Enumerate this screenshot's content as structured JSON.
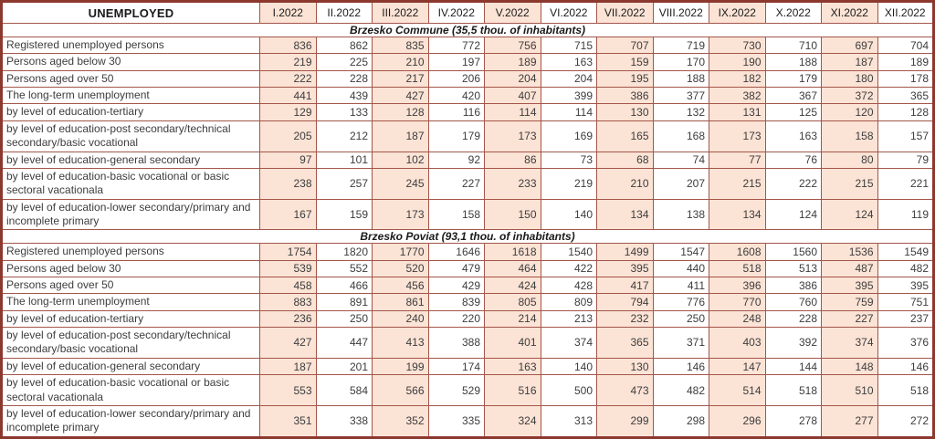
{
  "colors": {
    "outer_border": "#8c382f",
    "grid_line": "#a3564a",
    "alt_column_fill": "#fbe3d5",
    "text": "#3d3d3d"
  },
  "chart_data": {
    "type": "table",
    "title": "UNEMPLOYED",
    "columns": [
      "I.2022",
      "II.2022",
      "III.2022",
      "IV.2022",
      "V.2022",
      "VI.2022",
      "VII.2022",
      "VIII.2022",
      "IX.2022",
      "X.2022",
      "XI.2022",
      "XII.2022"
    ],
    "sections": [
      {
        "title": "Brzesko Commune (35,5 thou. of inhabitants)",
        "rows": [
          {
            "label": "Registered unemployed persons",
            "values": [
              836,
              862,
              835,
              772,
              756,
              715,
              707,
              719,
              730,
              710,
              697,
              704
            ]
          },
          {
            "label": "Persons aged below 30",
            "values": [
              219,
              225,
              210,
              197,
              189,
              163,
              159,
              170,
              190,
              188,
              187,
              189
            ]
          },
          {
            "label": "Persons aged over 50",
            "values": [
              222,
              228,
              217,
              206,
              204,
              204,
              195,
              188,
              182,
              179,
              180,
              178
            ]
          },
          {
            "label": "The long-term unemployment",
            "values": [
              441,
              439,
              427,
              420,
              407,
              399,
              386,
              377,
              382,
              367,
              372,
              365
            ]
          },
          {
            "label": "by level of education-tertiary",
            "values": [
              129,
              133,
              128,
              116,
              114,
              114,
              130,
              132,
              131,
              125,
              120,
              128
            ]
          },
          {
            "label": "by level of education-post secondary/technical secondary/basic vocational",
            "values": [
              205,
              212,
              187,
              179,
              173,
              169,
              165,
              168,
              173,
              163,
              158,
              157
            ]
          },
          {
            "label": "by level of education-general secondary",
            "values": [
              97,
              101,
              102,
              92,
              86,
              73,
              68,
              74,
              77,
              76,
              80,
              79
            ]
          },
          {
            "label": "by level of education-basic vocational or basic sectoral vacationala",
            "values": [
              238,
              257,
              245,
              227,
              233,
              219,
              210,
              207,
              215,
              222,
              215,
              221
            ]
          },
          {
            "label": "by level of education-lower secondary/primary and incomplete primary",
            "values": [
              167,
              159,
              173,
              158,
              150,
              140,
              134,
              138,
              134,
              124,
              124,
              119
            ]
          }
        ]
      },
      {
        "title": "Brzesko Poviat (93,1 thou. of inhabitants)",
        "rows": [
          {
            "label": "Registered unemployed persons",
            "values": [
              1754,
              1820,
              1770,
              1646,
              1618,
              1540,
              1499,
              1547,
              1608,
              1560,
              1536,
              1549
            ]
          },
          {
            "label": "Persons aged below 30",
            "values": [
              539,
              552,
              520,
              479,
              464,
              422,
              395,
              440,
              518,
              513,
              487,
              482
            ]
          },
          {
            "label": "Persons aged over 50",
            "values": [
              458,
              466,
              456,
              429,
              424,
              428,
              417,
              411,
              396,
              386,
              395,
              395
            ]
          },
          {
            "label": "The long-term unemployment",
            "values": [
              883,
              891,
              861,
              839,
              805,
              809,
              794,
              776,
              770,
              760,
              759,
              751
            ]
          },
          {
            "label": "by level of education-tertiary",
            "values": [
              236,
              250,
              240,
              220,
              214,
              213,
              232,
              250,
              248,
              228,
              227,
              237
            ]
          },
          {
            "label": "by level of education-post secondary/technical secondary/basic vocational",
            "values": [
              427,
              447,
              413,
              388,
              401,
              374,
              365,
              371,
              403,
              392,
              374,
              376
            ]
          },
          {
            "label": "by level of education-general secondary",
            "values": [
              187,
              201,
              199,
              174,
              163,
              140,
              130,
              146,
              147,
              144,
              148,
              146
            ]
          },
          {
            "label": "by level of education-basic vocational or basic sectoral vacationala",
            "values": [
              553,
              584,
              566,
              529,
              516,
              500,
              473,
              482,
              514,
              518,
              510,
              518
            ]
          },
          {
            "label": "by level of education-lower secondary/primary and incomplete primary",
            "values": [
              351,
              338,
              352,
              335,
              324,
              313,
              299,
              298,
              296,
              278,
              277,
              272
            ]
          }
        ]
      }
    ]
  }
}
